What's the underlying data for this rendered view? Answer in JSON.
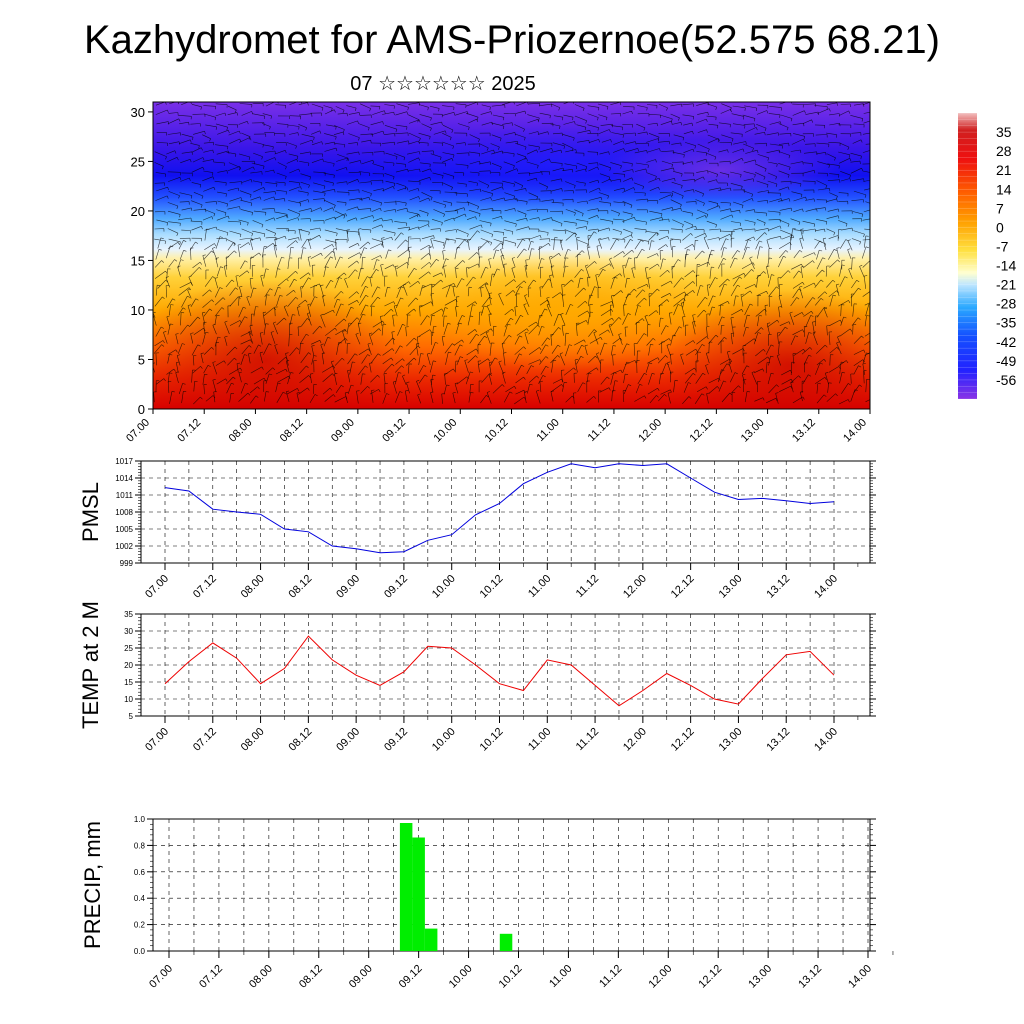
{
  "title": "Kazhydromet for AMS-Priozernoe(52.575 68.21)",
  "subtitle": "07 ☆☆☆☆☆☆ 2025",
  "time_ticks": [
    "07.00",
    "07.12",
    "08.00",
    "08.12",
    "09.00",
    "09.12",
    "10.00",
    "10.12",
    "11.00",
    "11.12",
    "12.00",
    "12.12",
    "13.00",
    "13.12",
    "14.00"
  ],
  "colors": {
    "pmsl": "#0000dd",
    "temp": "#ee0000",
    "precip": "#00ee00"
  },
  "chart_data": [
    {
      "type": "heatmap",
      "name": "cross-section",
      "title": "",
      "xlabel": "",
      "ylabel": "",
      "x_ticks": [
        "07.00",
        "07.12",
        "08.00",
        "08.12",
        "09.00",
        "09.12",
        "10.00",
        "10.12",
        "11.00",
        "11.12",
        "12.00",
        "12.12",
        "13.00",
        "13.12",
        "14.00"
      ],
      "xlim": [
        0,
        84
      ],
      "y_ticks": [
        0,
        5,
        10,
        15,
        20,
        25,
        30
      ],
      "ylim": [
        0,
        31
      ],
      "overlay": "wind barbs",
      "colorbar": {
        "labels": [
          35,
          28,
          21,
          14,
          7,
          0,
          -7,
          -14,
          -21,
          -28,
          -35,
          -42,
          -49,
          -56
        ],
        "range": [
          -63,
          42
        ]
      }
    },
    {
      "type": "line",
      "name": "PMSL",
      "ylabel": "PMSL",
      "x": [
        0,
        3,
        6,
        9,
        12,
        15,
        18,
        21,
        24,
        27,
        30,
        33,
        36,
        39,
        42,
        45,
        48,
        51,
        54,
        57,
        60,
        63,
        66,
        69,
        72,
        75,
        78,
        81,
        84
      ],
      "series": [
        {
          "name": "",
          "values": [
            1012.3,
            1011.7,
            1008.5,
            1008,
            1007.6,
            1005,
            1004.5,
            1002,
            1001.5,
            1000.8,
            1001,
            1003,
            1004,
            1007.5,
            1009.5,
            1013,
            1015,
            1016.5,
            1015.8,
            1016.5,
            1016.2,
            1016.5,
            1014,
            1011.5,
            1010.2,
            1010.4,
            1010,
            1009.5,
            1009.8
          ]
        }
      ],
      "y_ticks": [
        999,
        1002,
        1005,
        1008,
        1011,
        1014,
        1017
      ],
      "ylim": [
        999,
        1017
      ],
      "x_ticks": [
        "07.00",
        "07.12",
        "08.00",
        "08.12",
        "09.00",
        "09.12",
        "10.00",
        "10.12",
        "11.00",
        "11.12",
        "12.00",
        "12.12",
        "13.00",
        "13.12",
        "14.00"
      ]
    },
    {
      "type": "line",
      "name": "TEMP at 2 M",
      "ylabel": "TEMP at 2 M",
      "x": [
        0,
        3,
        6,
        9,
        12,
        15,
        18,
        21,
        24,
        27,
        30,
        33,
        36,
        39,
        42,
        45,
        48,
        51,
        54,
        57,
        60,
        63,
        66,
        69,
        72,
        75,
        78,
        81,
        84
      ],
      "series": [
        {
          "name": "",
          "values": [
            14.5,
            21,
            26.5,
            22,
            14.5,
            19,
            28.5,
            21.5,
            17,
            14,
            18,
            25.5,
            25,
            20,
            14.5,
            12.5,
            21.5,
            20,
            14,
            8,
            12.5,
            17.5,
            14,
            10,
            8.5,
            16,
            23,
            24,
            17
          ]
        }
      ],
      "y_ticks": [
        5,
        10,
        15,
        20,
        25,
        30,
        35
      ],
      "ylim": [
        5,
        35
      ],
      "x_ticks": [
        "07.00",
        "07.12",
        "08.00",
        "08.12",
        "09.00",
        "09.12",
        "10.00",
        "10.12",
        "11.00",
        "11.12",
        "12.00",
        "12.12",
        "13.00",
        "13.12",
        "14.00"
      ]
    },
    {
      "type": "bar",
      "name": "PRECIP",
      "ylabel": "PRECIP, mm",
      "bars": [
        {
          "x": 28.5,
          "value": 0.97
        },
        {
          "x": 30,
          "value": 0.86
        },
        {
          "x": 31.5,
          "value": 0.17
        },
        {
          "x": 40.5,
          "value": 0.13
        }
      ],
      "bar_width_hours": 1.5,
      "y_ticks": [
        "0.0",
        "0.2",
        "0.4",
        "0.6",
        "0.8",
        "1.0"
      ],
      "ylim": [
        0,
        1
      ],
      "x_ticks": [
        "07.00",
        "07.12",
        "08.00",
        "08.12",
        "09.00",
        "09.12",
        "10.00",
        "10.12",
        "11.00",
        "11.12",
        "12.00",
        "12.12",
        "13.00",
        "13.12",
        "14.00"
      ]
    }
  ]
}
